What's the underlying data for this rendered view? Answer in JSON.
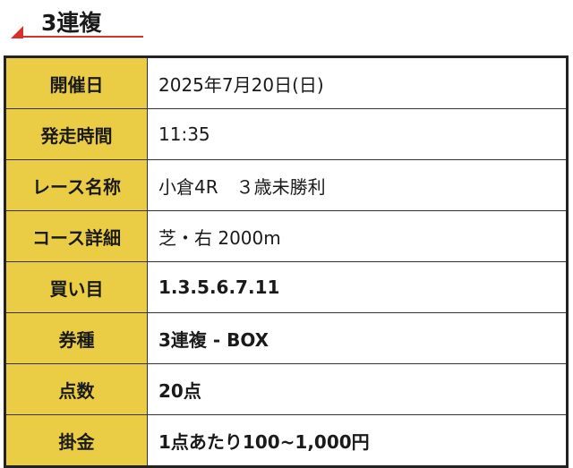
{
  "heading": {
    "title": "3連複",
    "accent_color": "#d9302b"
  },
  "table": {
    "label_bg": "#ebcd45",
    "rows": [
      {
        "label": "開催日",
        "value": "2025年7月20日(日)",
        "bold": false
      },
      {
        "label": "発走時間",
        "value": "11:35",
        "bold": false
      },
      {
        "label": "レース名称",
        "value": "小倉4R　３歳未勝利",
        "bold": false
      },
      {
        "label": "コース詳細",
        "value": "芝・右 2000m",
        "bold": false
      },
      {
        "label": "買い目",
        "value": "1.3.5.6.7.11",
        "bold": true
      },
      {
        "label": "券種",
        "value": "3連複 - BOX",
        "bold": true
      },
      {
        "label": "点数",
        "value": "20点",
        "bold": true
      },
      {
        "label": "掛金",
        "value": "1点あたり100~1,000円",
        "bold": true
      }
    ]
  }
}
